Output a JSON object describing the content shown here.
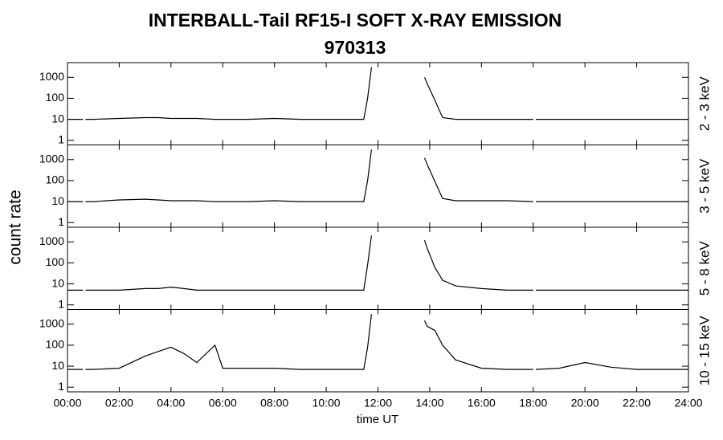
{
  "chart_data": {
    "type": "line",
    "title": "INTERBALL-Tail RF15-I SOFT X-RAY EMISSION",
    "subtitle": "970313",
    "xlabel": "time UT",
    "ylabel": "count rate",
    "log_y": true,
    "color": "#000000",
    "x": [
      0,
      0.6,
      0.65,
      0.7,
      1,
      2,
      3,
      3.5,
      4,
      4.5,
      5,
      5.7,
      6,
      7,
      8,
      9,
      10,
      11,
      11.45,
      11.6,
      11.75,
      11.8,
      13.8,
      13.9,
      14.2,
      14.5,
      15,
      16,
      17,
      18,
      18.05,
      18.1,
      19,
      20,
      21,
      22,
      23,
      24
    ],
    "xlim": [
      0,
      24
    ],
    "xticks": [
      {
        "value": 0,
        "label": "00:00"
      },
      {
        "value": 2,
        "label": "02:00"
      },
      {
        "value": 4,
        "label": "04:00"
      },
      {
        "value": 6,
        "label": "06:00"
      },
      {
        "value": 8,
        "label": "08:00"
      },
      {
        "value": 10,
        "label": "10:00"
      },
      {
        "value": 12,
        "label": "12:00"
      },
      {
        "value": 14,
        "label": "14:00"
      },
      {
        "value": 16,
        "label": "16:00"
      },
      {
        "value": 18,
        "label": "18:00"
      },
      {
        "value": 20,
        "label": "20:00"
      },
      {
        "value": 22,
        "label": "22:00"
      },
      {
        "value": 24,
        "label": "24:00"
      }
    ],
    "ylim": [
      0.6,
      5000
    ],
    "yticks": [
      1,
      10,
      100,
      1000
    ],
    "series": [
      {
        "name": "2 - 3 keV",
        "values": [
          10,
          10,
          null,
          10,
          10,
          11,
          12,
          12,
          11,
          11,
          11,
          10,
          10,
          10,
          11,
          10,
          10,
          10,
          10,
          100,
          3000,
          null,
          1000,
          500,
          80,
          12,
          10,
          10,
          10,
          10,
          null,
          10,
          10,
          10,
          10,
          10,
          10,
          10
        ]
      },
      {
        "name": "3 - 5 keV",
        "values": [
          10,
          10,
          null,
          10,
          10,
          12,
          13,
          12,
          11,
          11,
          11,
          10,
          10,
          10,
          11,
          10,
          10,
          10,
          10,
          100,
          3000,
          null,
          1200,
          600,
          90,
          14,
          11,
          11,
          11,
          10,
          null,
          10,
          10,
          10,
          10,
          10,
          10,
          10
        ]
      },
      {
        "name": "5 - 8 keV",
        "values": [
          5,
          5,
          null,
          5,
          5,
          5,
          6,
          6,
          7,
          6,
          5,
          5,
          5,
          5,
          5,
          5,
          5,
          5,
          5,
          80,
          2000,
          null,
          1200,
          500,
          60,
          15,
          8,
          6,
          5,
          5,
          null,
          5,
          5,
          5,
          5,
          5,
          5,
          5
        ]
      },
      {
        "name": "10 - 15 keV",
        "values": [
          7,
          7,
          null,
          7,
          7,
          8,
          30,
          50,
          80,
          40,
          15,
          100,
          8,
          8,
          8,
          7,
          7,
          7,
          7,
          80,
          3000,
          null,
          1500,
          800,
          500,
          100,
          20,
          8,
          7,
          7,
          null,
          7,
          8,
          15,
          9,
          7,
          7,
          7
        ]
      }
    ]
  }
}
